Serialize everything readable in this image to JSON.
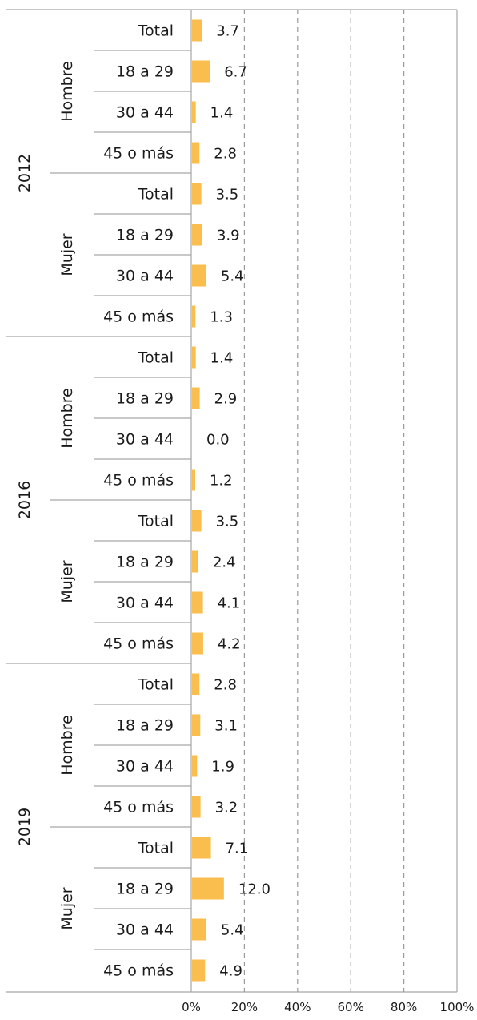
{
  "chart_data": {
    "type": "bar",
    "orientation": "horizontal",
    "bar_color": "#F9BE4D",
    "grid": true,
    "xlim": [
      0,
      100
    ],
    "x_ticks": [
      "0%",
      "20%",
      "40%",
      "60%",
      "80%",
      "100%"
    ],
    "years": [
      {
        "year": "2012",
        "groups": [
          {
            "name": "Hombre",
            "categories": [
              "Total",
              "18 a 29",
              "30 a 44",
              "45 o más"
            ],
            "values": [
              3.7,
              6.7,
              1.4,
              2.8
            ],
            "labels": [
              "3.7",
              "6.7",
              "1.4",
              "2.8"
            ]
          },
          {
            "name": "Mujer",
            "categories": [
              "Total",
              "18 a 29",
              "30 a 44",
              "45 o más"
            ],
            "values": [
              3.5,
              3.9,
              5.4,
              1.3
            ],
            "labels": [
              "3.5",
              "3.9",
              "5.4",
              "1.3"
            ]
          }
        ]
      },
      {
        "year": "2016",
        "groups": [
          {
            "name": "Hombre",
            "categories": [
              "Total",
              "18 a 29",
              "30 a 44",
              "45 o más"
            ],
            "values": [
              1.4,
              2.9,
              0.0,
              1.2
            ],
            "labels": [
              "1.4",
              "2.9",
              "0.0",
              "1.2"
            ]
          },
          {
            "name": "Mujer",
            "categories": [
              "Total",
              "18 a 29",
              "30 a 44",
              "45 o más"
            ],
            "values": [
              3.5,
              2.4,
              4.1,
              4.2
            ],
            "labels": [
              "3.5",
              "2.4",
              "4.1",
              "4.2"
            ]
          }
        ]
      },
      {
        "year": "2019",
        "groups": [
          {
            "name": "Hombre",
            "categories": [
              "Total",
              "18 a 29",
              "30 a 44",
              "45 o más"
            ],
            "values": [
              2.8,
              3.1,
              1.9,
              3.2
            ],
            "labels": [
              "2.8",
              "3.1",
              "1.9",
              "3.2"
            ]
          },
          {
            "name": "Mujer",
            "categories": [
              "Total",
              "18 a 29",
              "30 a 44",
              "45 o más"
            ],
            "values": [
              7.1,
              12.0,
              5.4,
              4.9
            ],
            "labels": [
              "7.1",
              "12.0",
              "5.4",
              "4.9"
            ]
          }
        ]
      }
    ]
  }
}
